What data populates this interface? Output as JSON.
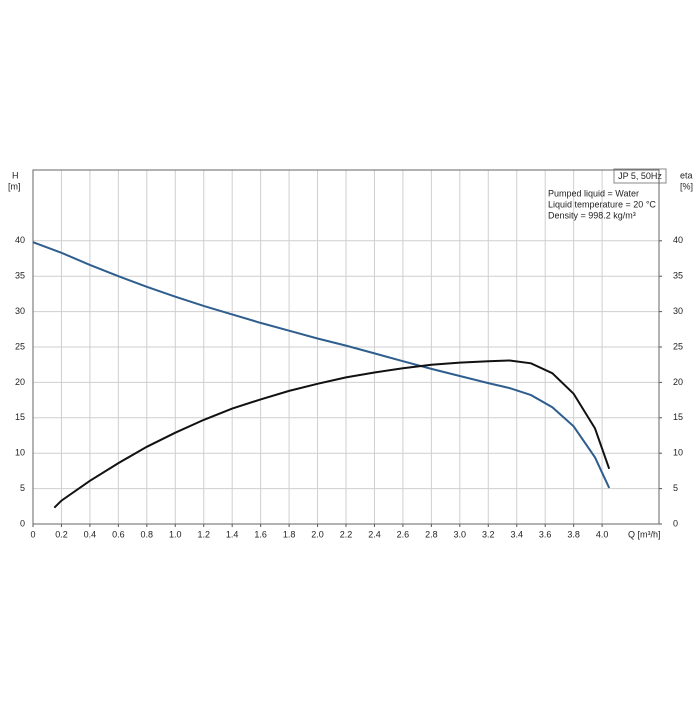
{
  "chart_data": {
    "type": "line",
    "title": "JP 5, 50Hz",
    "annotations": [
      "Pumped liquid = Water",
      "Liquid temperature = 20 °C",
      "Density = 998.2 kg/m³"
    ],
    "y_label": "H",
    "y_unit": "[m]",
    "y2_label": "eta",
    "y2_unit": "[%]",
    "x_label": "Q [m³/h]",
    "xlim": [
      0,
      4.4
    ],
    "xticks": [
      0,
      0.2,
      0.4,
      0.6,
      0.8,
      {
        "value": 1,
        "label": "1.0"
      },
      1.2,
      1.4,
      1.6,
      1.8,
      {
        "value": 2,
        "label": "2.0"
      },
      2.2,
      2.4,
      2.6,
      2.8,
      {
        "value": 3,
        "label": "3.0"
      },
      3.2,
      3.4,
      3.6,
      3.8,
      {
        "value": 4,
        "label": "4.0"
      }
    ],
    "ylim": [
      0,
      50
    ],
    "yticks": [
      0,
      5,
      10,
      15,
      20,
      25,
      30,
      35,
      40
    ],
    "y2lim": [
      0,
      50
    ],
    "y2ticks": [
      0,
      5,
      10,
      15,
      20,
      25,
      30,
      35,
      40
    ],
    "grid": true,
    "series": [
      {
        "name": "H",
        "color": "#2f5e8e",
        "x": [
          0,
          0.2,
          0.4,
          0.6,
          0.8,
          1.0,
          1.2,
          1.4,
          1.6,
          1.8,
          2.0,
          2.2,
          2.4,
          2.6,
          2.8,
          3.0,
          3.2,
          3.35,
          3.5,
          3.65,
          3.8,
          3.95,
          4.05
        ],
        "values": [
          39.8,
          38.3,
          36.6,
          35.0,
          33.5,
          32.1,
          30.8,
          29.6,
          28.4,
          27.3,
          26.2,
          25.2,
          24.1,
          23.0,
          21.9,
          20.9,
          19.9,
          19.2,
          18.2,
          16.5,
          13.8,
          9.4,
          5.1
        ]
      },
      {
        "name": "eta",
        "color": "#111111",
        "axis": "y2",
        "x": [
          0.15,
          0.2,
          0.4,
          0.6,
          0.8,
          1.0,
          1.2,
          1.4,
          1.6,
          1.8,
          2.0,
          2.2,
          2.4,
          2.6,
          2.8,
          3.0,
          3.2,
          3.35,
          3.5,
          3.65,
          3.8,
          3.95,
          4.05
        ],
        "values": [
          2.3,
          3.3,
          6.1,
          8.6,
          10.9,
          12.9,
          14.7,
          16.3,
          17.6,
          18.8,
          19.8,
          20.7,
          21.4,
          22.0,
          22.5,
          22.8,
          23.0,
          23.1,
          22.7,
          21.3,
          18.4,
          13.5,
          7.8
        ]
      }
    ]
  }
}
